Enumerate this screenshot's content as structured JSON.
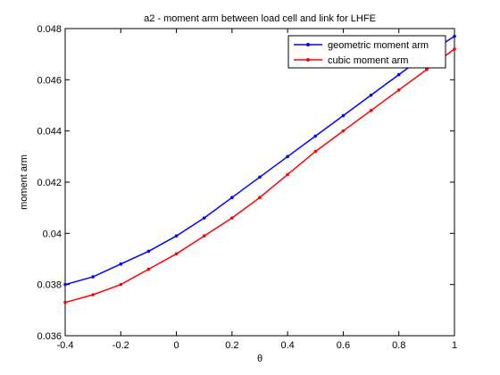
{
  "chart_data": {
    "type": "line",
    "title": "a2 - moment arm between load cell and link for LHFE",
    "xlabel": "θ",
    "ylabel": "moment arm",
    "xlim": [
      -0.4,
      1.0
    ],
    "ylim": [
      0.036,
      0.048
    ],
    "x_ticks": [
      "-0.4",
      "-0.2",
      "0",
      "0.2",
      "0.4",
      "0.6",
      "0.8",
      "1"
    ],
    "y_ticks": [
      "0.036",
      "0.038",
      "0.04",
      "0.042",
      "0.044",
      "0.046",
      "0.048"
    ],
    "grid": false,
    "legend_position": "top-right",
    "series": [
      {
        "name": "geometric moment arm",
        "color": "#0000ff",
        "x": [
          -0.4,
          -0.3,
          -0.2,
          -0.1,
          0.0,
          0.1,
          0.2,
          0.3,
          0.4,
          0.5,
          0.6,
          0.7,
          0.8,
          0.9,
          1.0
        ],
        "y": [
          0.038,
          0.0383,
          0.0388,
          0.0393,
          0.0399,
          0.0406,
          0.0414,
          0.0422,
          0.043,
          0.0438,
          0.0446,
          0.0454,
          0.0462,
          0.047,
          0.0477
        ]
      },
      {
        "name": "cubic moment arm",
        "color": "#ff0000",
        "x": [
          -0.4,
          -0.3,
          -0.2,
          -0.1,
          0.0,
          0.1,
          0.2,
          0.3,
          0.4,
          0.5,
          0.6,
          0.7,
          0.8,
          0.9,
          1.0
        ],
        "y": [
          0.0373,
          0.0376,
          0.038,
          0.0386,
          0.0392,
          0.0399,
          0.0406,
          0.0414,
          0.0423,
          0.0432,
          0.044,
          0.0448,
          0.0456,
          0.0464,
          0.0472
        ]
      }
    ]
  }
}
